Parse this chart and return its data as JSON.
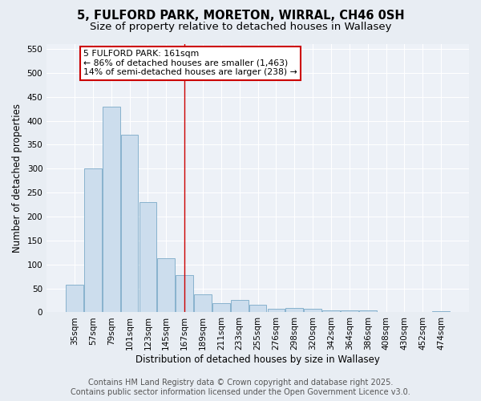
{
  "title": "5, FULFORD PARK, MORETON, WIRRAL, CH46 0SH",
  "subtitle": "Size of property relative to detached houses in Wallasey",
  "xlabel": "Distribution of detached houses by size in Wallasey",
  "ylabel": "Number of detached properties",
  "categories": [
    "35sqm",
    "57sqm",
    "79sqm",
    "101sqm",
    "123sqm",
    "145sqm",
    "167sqm",
    "189sqm",
    "211sqm",
    "233sqm",
    "255sqm",
    "276sqm",
    "298sqm",
    "320sqm",
    "342sqm",
    "364sqm",
    "386sqm",
    "408sqm",
    "430sqm",
    "452sqm",
    "474sqm"
  ],
  "values": [
    57,
    300,
    430,
    370,
    230,
    113,
    78,
    38,
    20,
    26,
    15,
    8,
    9,
    8,
    4,
    4,
    4,
    0,
    0,
    0,
    3
  ],
  "bar_color": "#ccdded",
  "bar_edge_color": "#7aaac8",
  "vline_index": 6,
  "vline_color": "#cc0000",
  "ylim": [
    0,
    560
  ],
  "yticks": [
    0,
    50,
    100,
    150,
    200,
    250,
    300,
    350,
    400,
    450,
    500,
    550
  ],
  "annotation_line1": "5 FULFORD PARK: 161sqm",
  "annotation_line2": "← 86% of detached houses are smaller (1,463)",
  "annotation_line3": "14% of semi-detached houses are larger (238) →",
  "annotation_box_color": "#ffffff",
  "annotation_box_edge": "#cc0000",
  "footer_line1": "Contains HM Land Registry data © Crown copyright and database right 2025.",
  "footer_line2": "Contains public sector information licensed under the Open Government Licence v3.0.",
  "bg_color": "#e8edf3",
  "plot_bg_color": "#edf1f7",
  "title_fontsize": 10.5,
  "subtitle_fontsize": 9.5,
  "axis_label_fontsize": 8.5,
  "tick_fontsize": 7.5,
  "annotation_fontsize": 7.8,
  "footer_fontsize": 7.0
}
